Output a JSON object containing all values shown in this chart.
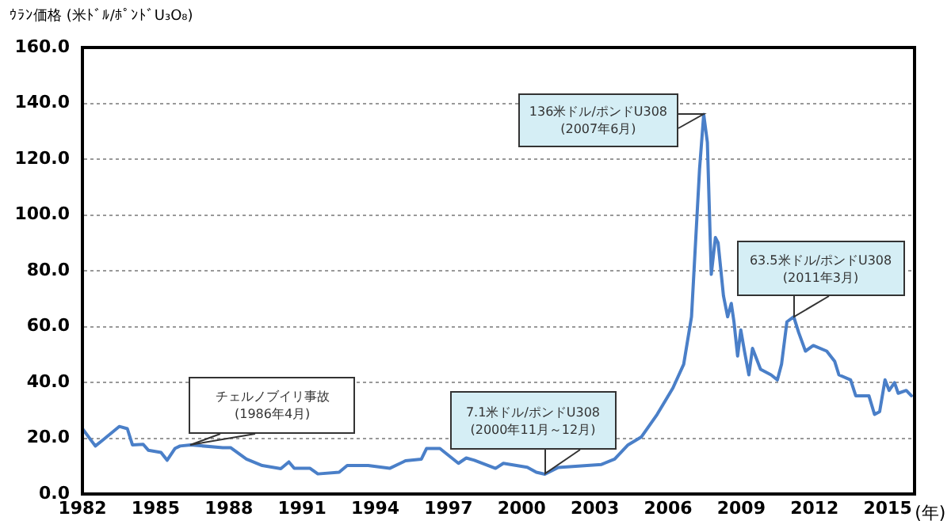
{
  "chart_data": {
    "type": "line",
    "ylabel": "ｳﾗﾝ価格 (米ﾄﾞﾙ/ﾎﾟﾝﾄﾞU₃O₈)",
    "xlabel": "(年)",
    "x": [
      1982.0,
      1982.53,
      1982.86,
      1983.51,
      1983.84,
      1984.05,
      1984.49,
      1984.7,
      1985.22,
      1985.47,
      1985.79,
      1986.0,
      1986.44,
      1987.75,
      1988.07,
      1988.72,
      1989.37,
      1990.13,
      1990.46,
      1990.68,
      1991.33,
      1991.65,
      1992.52,
      1992.85,
      1993.71,
      1994.59,
      1995.24,
      1995.89,
      1996.1,
      1996.65,
      1997.41,
      1997.73,
      1998.06,
      1998.93,
      1999.25,
      2000.23,
      2000.6,
      2000.95,
      2001.5,
      2003.27,
      2003.81,
      2004.36,
      2004.9,
      2005.55,
      2006.2,
      2006.64,
      2006.96,
      2007.29,
      2007.46,
      2007.61,
      2007.77,
      2007.94,
      2008.05,
      2008.27,
      2008.44,
      2008.59,
      2008.7,
      2008.85,
      2008.98,
      2009.13,
      2009.31,
      2009.46,
      2009.79,
      2010.22,
      2010.48,
      2010.65,
      2010.87,
      2011.15,
      2011.35,
      2011.63,
      2011.95,
      2012.5,
      2012.83,
      2013.0,
      2013.48,
      2013.69,
      2014.23,
      2014.46,
      2014.67,
      2014.89,
      2015.06,
      2015.28,
      2015.43,
      2015.76,
      2015.97
    ],
    "series": [
      {
        "color": "#4a7fc8",
        "values": [
          23.4,
          17.2,
          19.5,
          24.2,
          23.4,
          17.6,
          17.8,
          15.7,
          14.9,
          12.1,
          16.3,
          17.2,
          17.6,
          16.6,
          16.6,
          12.5,
          10.2,
          9.1,
          11.5,
          9.2,
          9.2,
          7.2,
          7.8,
          10.2,
          10.2,
          9.2,
          11.9,
          12.5,
          16.3,
          16.3,
          11.0,
          12.9,
          12.1,
          9.2,
          11.0,
          9.6,
          7.8,
          7.1,
          9.5,
          10.6,
          12.5,
          17.6,
          20.4,
          28.5,
          38.0,
          46.5,
          63.5,
          116.5,
          136,
          126,
          78.7,
          91.9,
          90,
          71,
          63.5,
          68.3,
          61.7,
          49.4,
          58.8,
          51.2,
          42.7,
          52.2,
          44.7,
          42.7,
          40.9,
          46.5,
          61.7,
          63.5,
          57.9,
          51.2,
          53.2,
          51.2,
          47.5,
          42.7,
          40.9,
          35.2,
          35.2,
          28.5,
          29.5,
          40.9,
          37.1,
          39.9,
          36.1,
          37.1,
          35.2
        ]
      }
    ],
    "xlim": [
      1982,
      2016.1
    ],
    "xticks": [
      1982,
      1985,
      1988,
      1991,
      1994,
      1997,
      2000,
      2003,
      2006,
      2009,
      2012,
      2015
    ],
    "ylim": [
      0,
      160
    ],
    "yticks": [
      {
        "value": 0,
        "label": "0.0"
      },
      {
        "value": 20,
        "label": "20.0"
      },
      {
        "value": 40,
        "label": "40.0"
      },
      {
        "value": 60,
        "label": "60.0"
      },
      {
        "value": 80,
        "label": "80.0"
      },
      {
        "value": 100,
        "label": "100.0"
      },
      {
        "value": 120,
        "label": "120.0"
      },
      {
        "value": 140,
        "label": "140.0"
      },
      {
        "value": 160,
        "label": "160.0"
      }
    ],
    "grid": "y",
    "legend": false,
    "marker": "none",
    "line_style": "solid",
    "annotations": [
      {
        "text": "チェルノブイリ事故\n(1986年4月)",
        "x": 1986.44,
        "y": 17.6
      },
      {
        "text": "7.1米ドル/ポンドU308\n(2000年11月～12月)",
        "x": 2000.95,
        "y": 7.1
      },
      {
        "text": "136米ドル/ポンドU308\n(2007年6月)",
        "x": 2007.46,
        "y": 136
      },
      {
        "text": "63.5米ドル/ポンドU308\n(2011年3月)",
        "x": 2011.15,
        "y": 63.5
      }
    ]
  }
}
